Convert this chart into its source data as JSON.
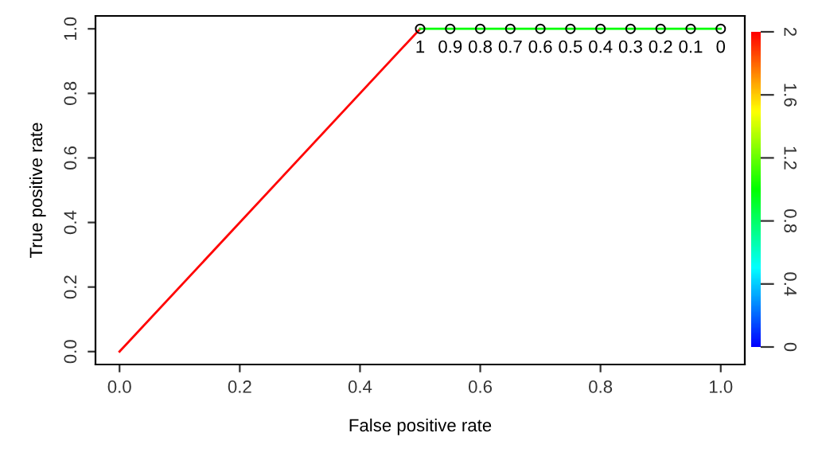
{
  "chart_data": {
    "type": "line",
    "xlabel": "False positive rate",
    "ylabel": "True positive rate",
    "series": [
      {
        "color": "#ff0000",
        "x": [
          0,
          0.5
        ],
        "values": [
          0,
          1
        ]
      },
      {
        "color": "#00ff00",
        "x": [
          0.5,
          0.55,
          0.6,
          0.65,
          0.7,
          0.75,
          0.8,
          0.85,
          0.9,
          0.95,
          1.0
        ],
        "values": [
          1,
          1,
          1,
          1,
          1,
          1,
          1,
          1,
          1,
          1,
          1
        ],
        "marker": "circle"
      }
    ],
    "annotations": [
      {
        "text": "1",
        "x": 0.5,
        "y": 1
      },
      {
        "text": "0.9",
        "x": 0.55,
        "y": 1
      },
      {
        "text": "0.8",
        "x": 0.6,
        "y": 1
      },
      {
        "text": "0.7",
        "x": 0.65,
        "y": 1
      },
      {
        "text": "0.6",
        "x": 0.7,
        "y": 1
      },
      {
        "text": "0.5",
        "x": 0.75,
        "y": 1
      },
      {
        "text": "0.4",
        "x": 0.8,
        "y": 1
      },
      {
        "text": "0.3",
        "x": 0.85,
        "y": 1
      },
      {
        "text": "0.2",
        "x": 0.9,
        "y": 1
      },
      {
        "text": "0.1",
        "x": 0.95,
        "y": 1
      },
      {
        "text": "0",
        "x": 1.0,
        "y": 1
      }
    ],
    "xlim": [
      -0.04,
      1.04
    ],
    "ylim": [
      -0.04,
      1.04
    ],
    "xticks": [
      {
        "value": 0,
        "label": "0.0"
      },
      0.2,
      0.4,
      0.6,
      0.8,
      {
        "value": 1,
        "label": "1.0"
      }
    ],
    "yticks": [
      {
        "value": 0,
        "label": "0.0"
      },
      0.2,
      0.4,
      0.6,
      0.8,
      {
        "value": 1,
        "label": "1.0"
      }
    ],
    "clim": [
      0,
      2
    ],
    "cticks": [
      0,
      0.4,
      0.8,
      1.2,
      1.6,
      2
    ],
    "grid": false
  }
}
